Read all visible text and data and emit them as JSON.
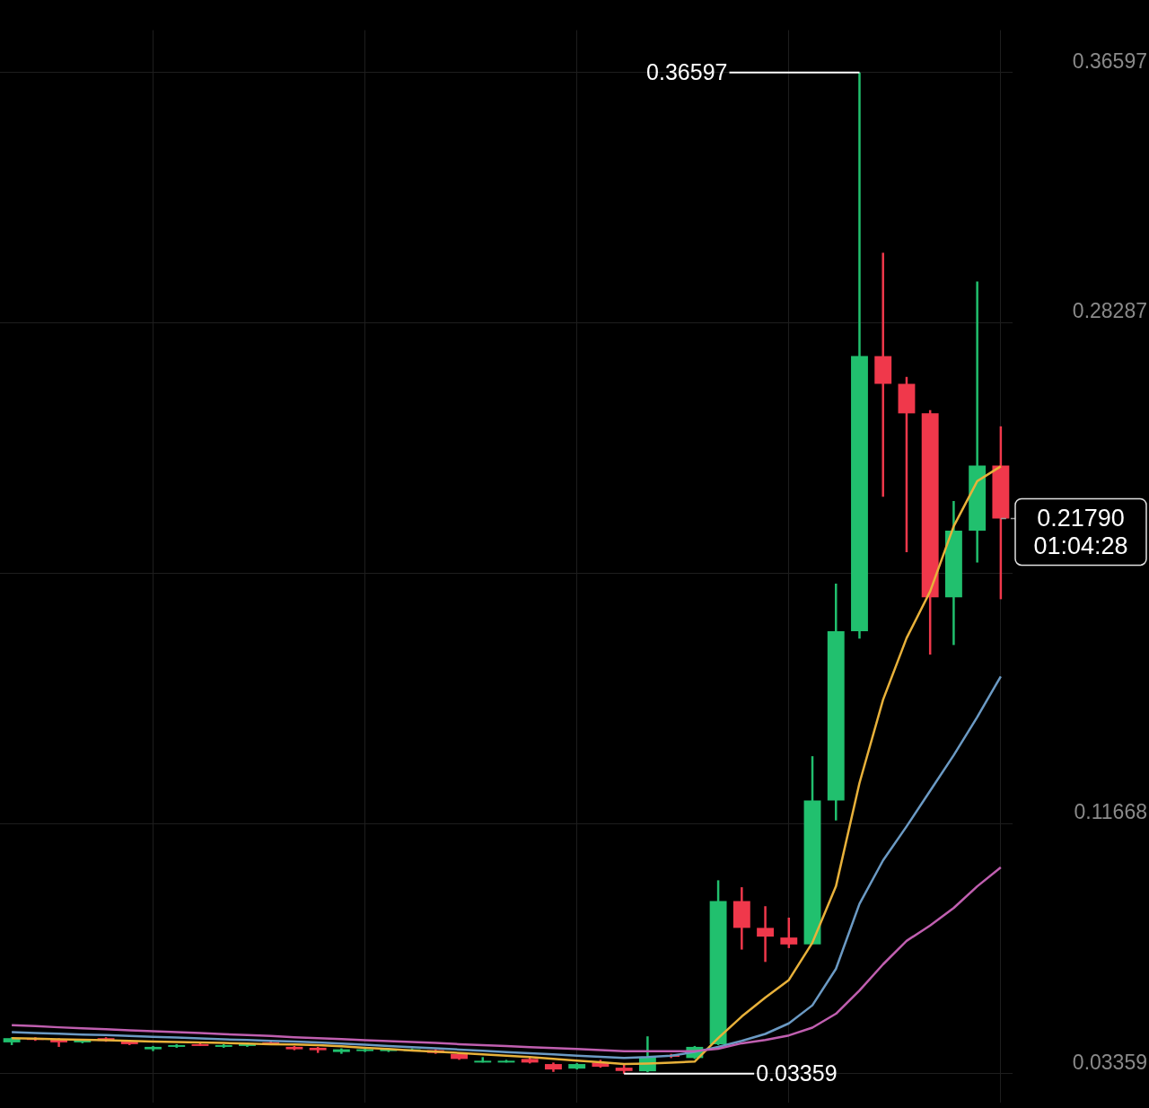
{
  "chart_data": {
    "type": "candlestick",
    "categories": [
      null,
      null,
      null,
      null,
      null,
      null,
      null,
      null,
      null,
      null,
      null,
      null,
      null,
      null,
      null,
      null,
      null,
      null,
      null,
      null,
      null,
      null,
      null,
      null,
      null,
      null,
      null,
      null,
      null,
      null,
      null,
      null,
      null,
      null,
      null,
      null,
      null,
      null,
      null,
      null,
      null,
      null,
      null
    ],
    "series": [
      {
        "type": "line",
        "color": "#c05fb0",
        "values": [
          0.0497,
          0.0494,
          0.049,
          0.0487,
          0.0484,
          0.048,
          0.0477,
          0.0474,
          0.0471,
          0.0467,
          0.0464,
          0.0461,
          0.0457,
          0.0454,
          0.0451,
          0.0447,
          0.0444,
          0.0441,
          0.0438,
          0.0434,
          0.0431,
          0.0428,
          0.0424,
          0.0421,
          0.0418,
          0.0414,
          0.0411,
          0.0411,
          0.0411,
          0.0411,
          0.0419,
          0.0437,
          0.0448,
          0.0463,
          0.0489,
          0.0535,
          0.0612,
          0.0699,
          0.0777,
          0.0828,
          0.0886,
          0.0958,
          0.1021
        ]
      },
      {
        "type": "line",
        "color": "#6b9ac4",
        "values": [
          0.0474,
          0.0471,
          0.0469,
          0.0466,
          0.0464,
          0.0461,
          0.0458,
          0.0456,
          0.0453,
          0.045,
          0.0448,
          0.0445,
          0.0443,
          0.044,
          0.0436,
          0.0432,
          0.0428,
          0.0424,
          0.042,
          0.0416,
          0.0412,
          0.0408,
          0.0404,
          0.04,
          0.0396,
          0.0392,
          0.0388,
          0.0391,
          0.0396,
          0.0408,
          0.0425,
          0.0445,
          0.0468,
          0.0503,
          0.0563,
          0.0684,
          0.09,
          0.1044,
          0.1157,
          0.1275,
          0.1393,
          0.152,
          0.1655
        ]
      },
      {
        "type": "line",
        "color": "#e8b13a",
        "values": [
          0.0454,
          0.0452,
          0.045,
          0.0449,
          0.0447,
          0.0445,
          0.0443,
          0.0441,
          0.044,
          0.0438,
          0.0436,
          0.0434,
          0.0433,
          0.0431,
          0.0427,
          0.0422,
          0.0418,
          0.0413,
          0.0409,
          0.0405,
          0.04,
          0.0396,
          0.0391,
          0.0385,
          0.0379,
          0.0374,
          0.0368,
          0.037,
          0.0373,
          0.0376,
          0.0454,
          0.0526,
          0.0589,
          0.0647,
          0.0771,
          0.0958,
          0.1301,
          0.1577,
          0.1782,
          0.1937,
          0.2153,
          0.2303,
          0.2352
        ]
      },
      {
        "colors": [
          "#21c06e",
          "#f0384b",
          "#f0384b",
          "#21c06e",
          "#f0384b",
          "#f0384b",
          "#21c06e",
          "#21c06e",
          "#f0384b",
          "#21c06e",
          "#21c06e",
          "#f0384b",
          "#f0384b",
          "#f0384b",
          "#21c06e",
          "#21c06e",
          "#21c06e",
          "#21c06e",
          "#f0384b",
          "#f0384b",
          "#21c06e",
          "#21c06e",
          "#f0384b",
          "#f0384b",
          "#21c06e",
          "#f0384b",
          "#f0384b",
          "#21c06e",
          "#f0384b",
          "#21c06e",
          "#21c06e",
          "#f0384b",
          "#f0384b",
          "#f0384b",
          "#21c06e",
          "#21c06e",
          "#21c06e",
          "#f0384b",
          "#f0384b",
          "#f0384b",
          "#21c06e",
          "#21c06e",
          "#f0384b"
        ],
        "ohlc": [
          [
            0.044,
            0.0457,
            0.0431,
            0.0454
          ],
          [
            0.0454,
            0.0457,
            0.0445,
            0.0448
          ],
          [
            0.0451,
            0.0454,
            0.0425,
            0.044
          ],
          [
            0.044,
            0.0451,
            0.0437,
            0.0448
          ],
          [
            0.0454,
            0.0457,
            0.0442,
            0.0445
          ],
          [
            0.0443,
            0.0446,
            0.0431,
            0.0434
          ],
          [
            0.0417,
            0.0428,
            0.0411,
            0.0425
          ],
          [
            0.0425,
            0.0434,
            0.0422,
            0.0431
          ],
          [
            0.0434,
            0.0437,
            0.0428,
            0.0431
          ],
          [
            0.0425,
            0.0434,
            0.0422,
            0.0431
          ],
          [
            0.0428,
            0.0437,
            0.0425,
            0.0434
          ],
          [
            0.044,
            0.0443,
            0.0434,
            0.0437
          ],
          [
            0.0425,
            0.0428,
            0.0414,
            0.0417
          ],
          [
            0.0422,
            0.0425,
            0.0405,
            0.0414
          ],
          [
            0.0408,
            0.042,
            0.0402,
            0.0417
          ],
          [
            0.0411,
            0.042,
            0.0408,
            0.0417
          ],
          [
            0.0411,
            0.042,
            0.0408,
            0.0417
          ],
          [
            0.0417,
            0.042,
            0.0414,
            0.0417
          ],
          [
            0.0414,
            0.0417,
            0.0402,
            0.0405
          ],
          [
            0.0402,
            0.0405,
            0.0382,
            0.0385
          ],
          [
            0.0376,
            0.0391,
            0.0373,
            0.0379
          ],
          [
            0.0376,
            0.0382,
            0.0373,
            0.0379
          ],
          [
            0.0385,
            0.0391,
            0.037,
            0.0373
          ],
          [
            0.0368,
            0.0373,
            0.0342,
            0.035
          ],
          [
            0.0353,
            0.0371,
            0.035,
            0.0368
          ],
          [
            0.0373,
            0.0382,
            0.0356,
            0.0359
          ],
          [
            0.0356,
            0.037,
            0.03359,
            0.0345
          ],
          [
            0.0344,
            0.046,
            0.0341,
            0.039
          ],
          [
            0.0398,
            0.0402,
            0.0388,
            0.0394
          ],
          [
            0.0388,
            0.0428,
            0.0385,
            0.0425
          ],
          [
            0.0434,
            0.0978,
            0.0431,
            0.0909
          ],
          [
            0.0909,
            0.0955,
            0.0748,
            0.082
          ],
          [
            0.082,
            0.0892,
            0.0707,
            0.0791
          ],
          [
            0.0788,
            0.0854,
            0.0753,
            0.0765
          ],
          [
            0.0765,
            0.139,
            0.0765,
            0.1243
          ],
          [
            0.1243,
            0.1963,
            0.1177,
            0.1805
          ],
          [
            0.1805,
            0.36597,
            0.178,
            0.2718
          ],
          [
            0.2718,
            0.3061,
            0.2251,
            0.2626
          ],
          [
            0.2626,
            0.2649,
            0.2067,
            0.2528
          ],
          [
            0.2528,
            0.2539,
            0.1727,
            0.1917
          ],
          [
            0.1917,
            0.2237,
            0.1759,
            0.2139
          ],
          [
            0.2139,
            0.2966,
            0.2033,
            0.2355
          ],
          [
            0.2355,
            0.2485,
            0.1911,
            0.2179
          ]
        ]
      }
    ],
    "ylim": [
      0.024,
      0.38
    ],
    "yticks": [
      0.03359,
      0.11668,
      {
        "value": 0.19978,
        "label": null
      },
      0.28287,
      0.36597
    ],
    "grid": true,
    "tick_labels": "y",
    "ref_lines": [
      {
        "axis": "y",
        "value": 0.2179,
        "label": "0.21790",
        "color": "#9a9a9a",
        "line_style": "dashed"
      }
    ],
    "annotations": [
      "0.36597",
      "0.03359",
      "01:04:28"
    ]
  }
}
